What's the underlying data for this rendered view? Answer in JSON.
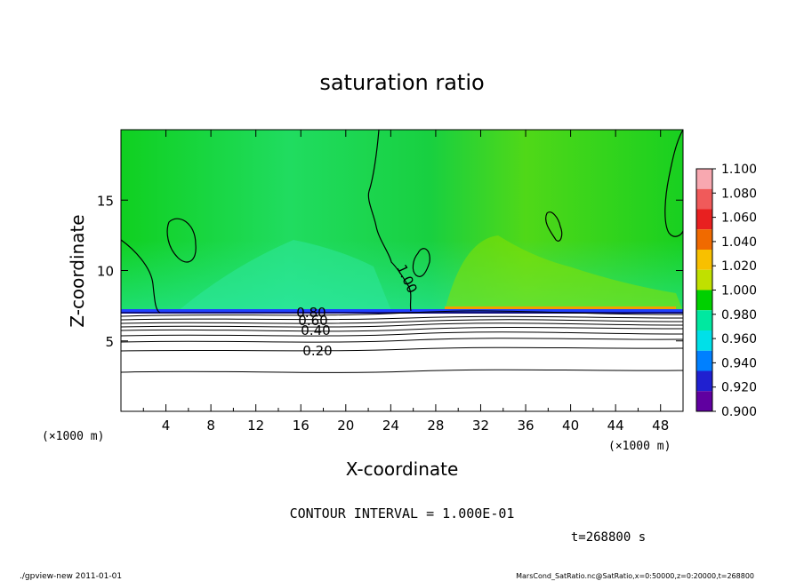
{
  "chart_data": {
    "type": "heatmap",
    "title": "saturation ratio",
    "xlabel": "X-coordinate",
    "ylabel": "Z-coordinate",
    "x_unit": "(×1000 m)",
    "y_unit": "(×1000 m)",
    "xlim": [
      0,
      50
    ],
    "ylim": [
      0,
      20
    ],
    "x_ticks": [
      "4",
      "8",
      "12",
      "16",
      "20",
      "24",
      "28",
      "32",
      "36",
      "40",
      "44",
      "48"
    ],
    "y_ticks": [
      "5",
      "10",
      "15"
    ],
    "colorbar": {
      "levels": [
        "1.100",
        "1.080",
        "1.060",
        "1.040",
        "1.020",
        "1.000",
        "0.980",
        "0.960",
        "0.940",
        "0.920",
        "0.900"
      ],
      "colors": [
        "#f8a8b0",
        "#f05a5a",
        "#e82020",
        "#f06a00",
        "#f8c000",
        "#c0e000",
        "#00d000",
        "#00e8a0",
        "#00e0e8",
        "#0080ff",
        "#2020d0",
        "#6000a0"
      ]
    },
    "contour_labels": [
      "0.20",
      "0.40",
      "0.60",
      "0.80",
      "1.00"
    ],
    "contour_interval_text": "CONTOUR INTERVAL = 1.000E-01",
    "time_text": "t=268800 s",
    "footer_left": "./gpview-new 2011-01-01",
    "footer_right": "MarsCond_SatRatio.nc@SatRatio,x=0:50000,z=0:20000,t=268800"
  }
}
